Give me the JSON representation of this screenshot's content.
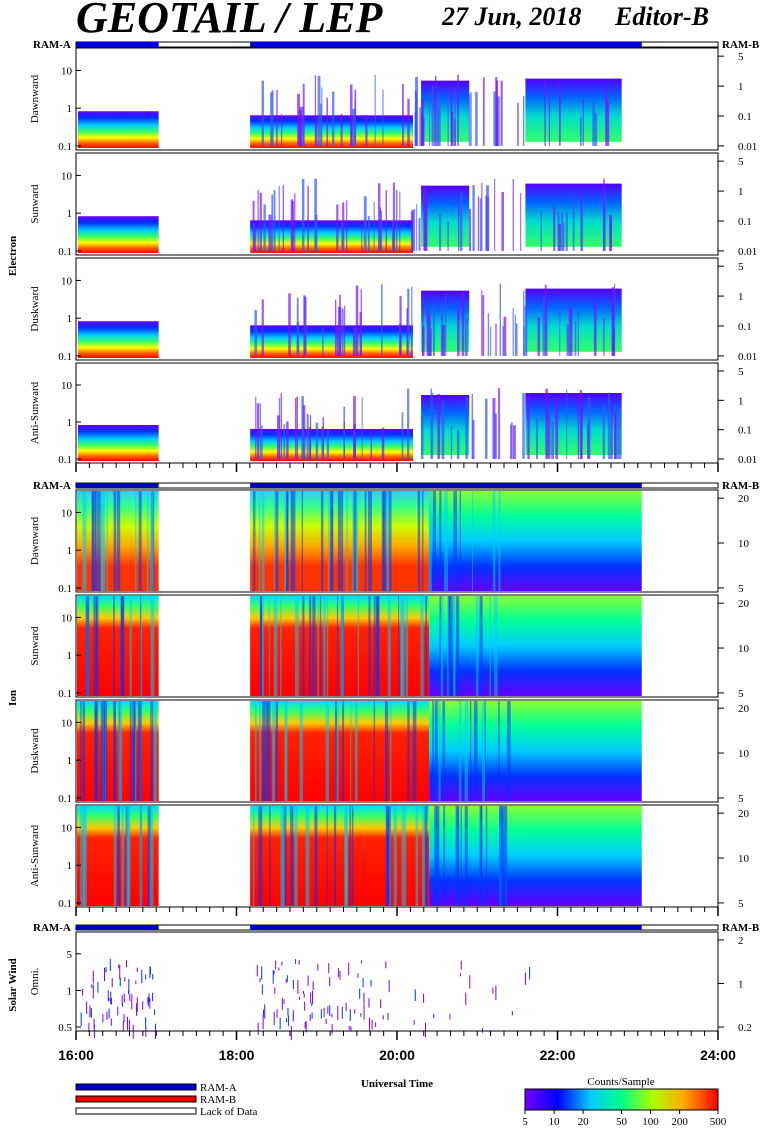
{
  "header": {
    "instrument": "GEOTAIL / LEP",
    "date": "27 Jun, 2018",
    "editor": "Editor-B"
  },
  "ram": {
    "left": "RAM-A",
    "right": "RAM-B"
  },
  "groups": [
    {
      "name": "Electron",
      "panels": [
        "Dawnward",
        "Sunward",
        "Duskward",
        "Anti-Sunward"
      ],
      "left_ticks": [
        "10",
        "1",
        "0.1"
      ],
      "right_ticks": [
        "5",
        "1",
        "0.1",
        "0.01"
      ]
    },
    {
      "name": "Ion",
      "panels": [
        "Dawnward",
        "Sunward",
        "Duskward",
        "Anti-Sunward"
      ],
      "left_ticks": [
        "10",
        "1",
        "0.1"
      ],
      "right_ticks": [
        "20",
        "10",
        "5"
      ]
    },
    {
      "name": "Solar Wind",
      "panels": [
        "Omni."
      ],
      "left_ticks": [
        "5",
        "1",
        "0.5"
      ],
      "right_ticks": [
        "2",
        "1",
        "0.2"
      ]
    }
  ],
  "time_axis": {
    "ticks": [
      "16:00",
      "18:00",
      "20:00",
      "22:00",
      "24:00"
    ],
    "label": "Universal Time"
  },
  "legend": {
    "items": [
      "RAM-A",
      "RAM-B",
      "Lack of Data"
    ],
    "colors": {
      "ram_a": "#0000cc",
      "ram_b": "#ee0000",
      "lack": "#ffffff"
    }
  },
  "colorbar": {
    "title": "Counts/Sample",
    "ticks": [
      "5",
      "10",
      "20",
      "50",
      "100",
      "200",
      "500"
    ]
  },
  "chart_data": {
    "type": "heatmap",
    "x_range_hours": [
      16,
      24
    ],
    "data_gaps_hours": [
      [
        17.03,
        18.17
      ]
    ],
    "data_end_hours": 23.05,
    "electron_active_end_hours": 22.8,
    "color_scale": {
      "min": 5,
      "max": 500,
      "scale": "log"
    }
  }
}
